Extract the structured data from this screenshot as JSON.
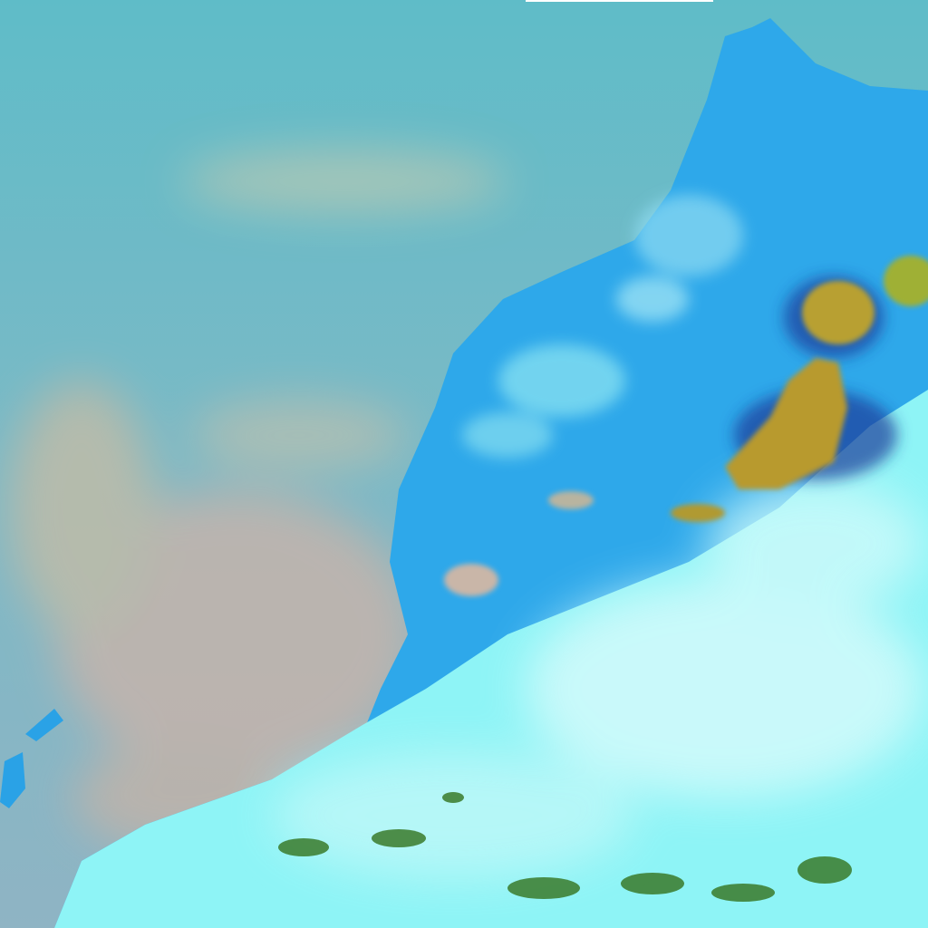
{
  "image": {
    "kind": "false-color satellite scene",
    "colors": {
      "ocean": "#6cb9c7",
      "dust_haze": "#c9b6a8",
      "land": "#2ea8ea",
      "land_light": "#7fd8f0",
      "cloud_cyan": "#8ef4f6",
      "cloud_white": "#d8fbfb",
      "storm_orange": "#b8a030",
      "vegetation": "#3a7a2a",
      "top_strip": "#ffffff"
    },
    "regions": [
      "ocean",
      "dust-haze",
      "land",
      "cloud-bank",
      "convective-cells",
      "islands"
    ]
  }
}
